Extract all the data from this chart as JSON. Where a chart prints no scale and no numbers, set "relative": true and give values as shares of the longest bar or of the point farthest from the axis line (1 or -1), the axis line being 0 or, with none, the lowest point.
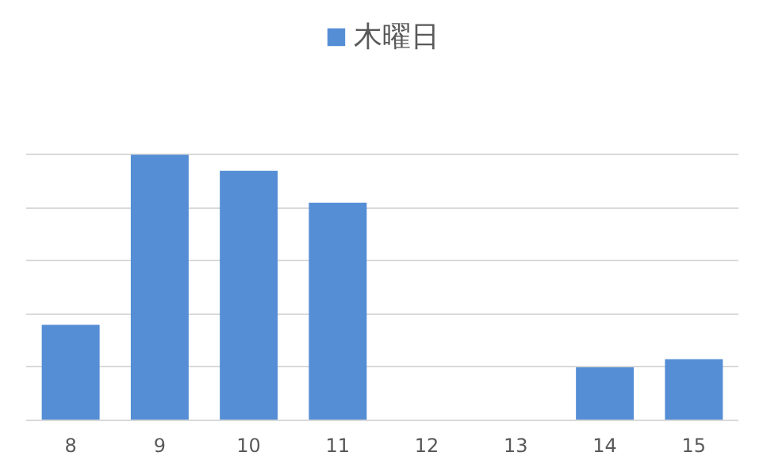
{
  "chart_data": {
    "type": "bar",
    "relative": true,
    "categories": [
      "8",
      "9",
      "10",
      "11",
      "12",
      "13",
      "14",
      "15"
    ],
    "series": [
      {
        "name": "木曜日",
        "color": "#558ed5",
        "values": [
          0.36,
          1,
          0.94,
          0.82,
          0,
          0,
          0.2,
          0.23
        ]
      }
    ],
    "grid": "y",
    "legend": "top"
  }
}
